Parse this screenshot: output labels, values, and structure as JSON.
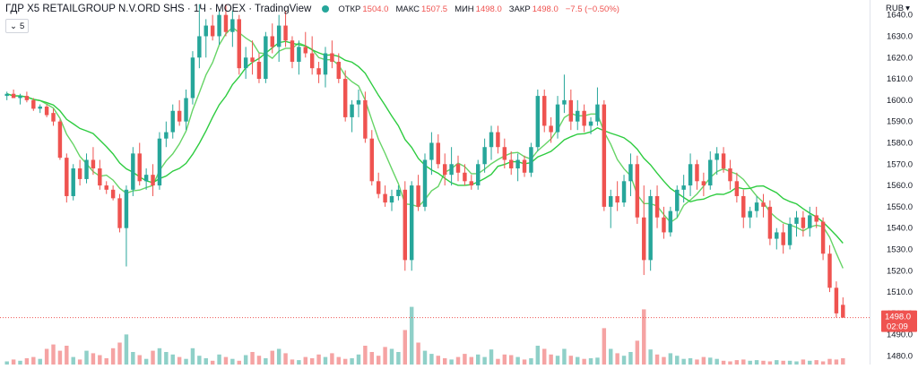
{
  "header": {
    "symbol_title": "ГДР X5 RETAILGROUP N.V.ORD SHS · 1Ч · MOEX · TradingView",
    "ohlc": [
      {
        "label": "ОТКР",
        "value": "1504.0"
      },
      {
        "label": "МАКС",
        "value": "1507.5"
      },
      {
        "label": "МИН",
        "value": "1498.0"
      },
      {
        "label": "ЗАКР",
        "value": "1498.0"
      }
    ],
    "change": "−7.5 (−0.50%)",
    "indicator_count": "5"
  },
  "currency": "RUB",
  "last_price": {
    "price_label": "1498.0",
    "countdown": "02:09"
  },
  "colors": {
    "up": "#26a69a",
    "down": "#ef5350",
    "ma_fast": "#66d466",
    "ma_slow": "#2ecc40",
    "vol_up": "#8fd0c8",
    "vol_down": "#f5a3a3"
  },
  "chart_data": {
    "type": "candlestick",
    "ylim": [
      1476,
      1647
    ],
    "yticks": [
      1480,
      1490,
      1500,
      1510,
      1520,
      1530,
      1540,
      1550,
      1560,
      1570,
      1580,
      1590,
      1600,
      1610,
      1620,
      1630,
      1640
    ],
    "candles": [
      [
        1602,
        1604,
        1600,
        1603
      ],
      [
        1603,
        1605,
        1601,
        1601
      ],
      [
        1601,
        1603,
        1598,
        1602
      ],
      [
        1602,
        1604,
        1599,
        1600
      ],
      [
        1600,
        1601,
        1595,
        1596
      ],
      [
        1596,
        1598,
        1594,
        1597
      ],
      [
        1597,
        1598,
        1592,
        1593
      ],
      [
        1594,
        1596,
        1588,
        1590
      ],
      [
        1590,
        1591,
        1572,
        1573
      ],
      [
        1573,
        1575,
        1552,
        1555
      ],
      [
        1555,
        1570,
        1553,
        1568
      ],
      [
        1568,
        1572,
        1560,
        1563
      ],
      [
        1563,
        1575,
        1561,
        1572
      ],
      [
        1572,
        1578,
        1565,
        1568
      ],
      [
        1568,
        1572,
        1558,
        1560
      ],
      [
        1560,
        1562,
        1556,
        1558
      ],
      [
        1558,
        1560,
        1553,
        1554
      ],
      [
        1554,
        1556,
        1538,
        1540
      ],
      [
        1540,
        1560,
        1522,
        1558
      ],
      [
        1558,
        1578,
        1555,
        1575
      ],
      [
        1575,
        1580,
        1560,
        1562
      ],
      [
        1562,
        1568,
        1558,
        1565
      ],
      [
        1565,
        1570,
        1555,
        1560
      ],
      [
        1560,
        1585,
        1558,
        1582
      ],
      [
        1582,
        1590,
        1578,
        1585
      ],
      [
        1585,
        1598,
        1582,
        1595
      ],
      [
        1595,
        1600,
        1588,
        1590
      ],
      [
        1590,
        1605,
        1586,
        1601
      ],
      [
        1601,
        1623,
        1598,
        1620
      ],
      [
        1620,
        1645,
        1615,
        1630
      ],
      [
        1630,
        1638,
        1620,
        1635
      ],
      [
        1635,
        1640,
        1628,
        1630
      ],
      [
        1630,
        1642,
        1626,
        1640
      ],
      [
        1640,
        1645,
        1630,
        1632
      ],
      [
        1632,
        1642,
        1625,
        1638
      ],
      [
        1638,
        1640,
        1612,
        1615
      ],
      [
        1615,
        1625,
        1610,
        1620
      ],
      [
        1620,
        1628,
        1612,
        1618
      ],
      [
        1618,
        1622,
        1608,
        1610
      ],
      [
        1610,
        1632,
        1608,
        1630
      ],
      [
        1630,
        1636,
        1622,
        1625
      ],
      [
        1625,
        1640,
        1618,
        1635
      ],
      [
        1635,
        1642,
        1625,
        1628
      ],
      [
        1628,
        1630,
        1615,
        1618
      ],
      [
        1618,
        1628,
        1612,
        1625
      ],
      [
        1625,
        1632,
        1620,
        1622
      ],
      [
        1622,
        1630,
        1612,
        1615
      ],
      [
        1615,
        1618,
        1608,
        1612
      ],
      [
        1612,
        1625,
        1606,
        1622
      ],
      [
        1622,
        1628,
        1615,
        1618
      ],
      [
        1618,
        1622,
        1608,
        1610
      ],
      [
        1610,
        1614,
        1590,
        1592
      ],
      [
        1592,
        1600,
        1585,
        1598
      ],
      [
        1598,
        1605,
        1592,
        1600
      ],
      [
        1600,
        1604,
        1580,
        1582
      ],
      [
        1582,
        1586,
        1560,
        1562
      ],
      [
        1562,
        1566,
        1554,
        1556
      ],
      [
        1556,
        1560,
        1550,
        1552
      ],
      [
        1552,
        1558,
        1548,
        1555
      ],
      [
        1555,
        1560,
        1553,
        1558
      ],
      [
        1558,
        1562,
        1520,
        1525
      ],
      [
        1525,
        1562,
        1520,
        1560
      ],
      [
        1560,
        1565,
        1548,
        1550
      ],
      [
        1550,
        1575,
        1548,
        1572
      ],
      [
        1572,
        1585,
        1565,
        1580
      ],
      [
        1580,
        1584,
        1568,
        1570
      ],
      [
        1570,
        1575,
        1560,
        1565
      ],
      [
        1565,
        1578,
        1560,
        1570
      ],
      [
        1570,
        1574,
        1562,
        1566
      ],
      [
        1566,
        1570,
        1560,
        1562
      ],
      [
        1562,
        1565,
        1558,
        1560
      ],
      [
        1560,
        1572,
        1558,
        1570
      ],
      [
        1570,
        1582,
        1566,
        1578
      ],
      [
        1578,
        1588,
        1572,
        1585
      ],
      [
        1585,
        1588,
        1575,
        1578
      ],
      [
        1578,
        1582,
        1568,
        1572
      ],
      [
        1572,
        1576,
        1565,
        1568
      ],
      [
        1568,
        1575,
        1562,
        1572
      ],
      [
        1572,
        1574,
        1564,
        1566
      ],
      [
        1566,
        1580,
        1564,
        1578
      ],
      [
        1578,
        1605,
        1576,
        1602
      ],
      [
        1602,
        1605,
        1585,
        1588
      ],
      [
        1588,
        1592,
        1580,
        1585
      ],
      [
        1585,
        1602,
        1582,
        1598
      ],
      [
        1598,
        1612,
        1594,
        1600
      ],
      [
        1600,
        1605,
        1586,
        1590
      ],
      [
        1590,
        1600,
        1586,
        1595
      ],
      [
        1595,
        1598,
        1585,
        1588
      ],
      [
        1588,
        1592,
        1584,
        1590
      ],
      [
        1590,
        1606,
        1588,
        1598
      ],
      [
        1598,
        1600,
        1548,
        1550
      ],
      [
        1550,
        1558,
        1540,
        1555
      ],
      [
        1555,
        1562,
        1548,
        1552
      ],
      [
        1552,
        1565,
        1550,
        1562
      ],
      [
        1562,
        1575,
        1555,
        1570
      ],
      [
        1570,
        1574,
        1542,
        1545
      ],
      [
        1545,
        1560,
        1518,
        1525
      ],
      [
        1525,
        1558,
        1520,
        1555
      ],
      [
        1555,
        1560,
        1540,
        1545
      ],
      [
        1545,
        1550,
        1535,
        1538
      ],
      [
        1538,
        1550,
        1536,
        1548
      ],
      [
        1548,
        1560,
        1545,
        1558
      ],
      [
        1558,
        1565,
        1552,
        1560
      ],
      [
        1560,
        1575,
        1555,
        1570
      ],
      [
        1570,
        1572,
        1558,
        1562
      ],
      [
        1562,
        1566,
        1555,
        1560
      ],
      [
        1560,
        1576,
        1558,
        1572
      ],
      [
        1572,
        1578,
        1565,
        1575
      ],
      [
        1575,
        1578,
        1566,
        1568
      ],
      [
        1568,
        1572,
        1558,
        1562
      ],
      [
        1562,
        1566,
        1552,
        1555
      ],
      [
        1555,
        1558,
        1540,
        1545
      ],
      [
        1545,
        1550,
        1540,
        1548
      ],
      [
        1548,
        1555,
        1545,
        1552
      ],
      [
        1552,
        1556,
        1545,
        1550
      ],
      [
        1550,
        1553,
        1532,
        1535
      ],
      [
        1535,
        1540,
        1530,
        1538
      ],
      [
        1538,
        1542,
        1528,
        1532
      ],
      [
        1532,
        1545,
        1530,
        1542
      ],
      [
        1542,
        1548,
        1536,
        1545
      ],
      [
        1545,
        1548,
        1536,
        1540
      ],
      [
        1540,
        1550,
        1536,
        1546
      ],
      [
        1546,
        1550,
        1540,
        1543
      ],
      [
        1543,
        1545,
        1525,
        1528
      ],
      [
        1528,
        1532,
        1510,
        1512
      ],
      [
        1512,
        1515,
        1498,
        1500
      ],
      [
        1504,
        1507.5,
        1498,
        1498
      ]
    ],
    "volumes": [
      0.05,
      0.08,
      0.06,
      0.1,
      0.12,
      0.09,
      0.25,
      0.32,
      0.22,
      0.3,
      0.12,
      0.08,
      0.22,
      0.18,
      0.15,
      0.1,
      0.26,
      0.35,
      0.48,
      0.2,
      0.15,
      0.09,
      0.22,
      0.26,
      0.2,
      0.16,
      0.12,
      0.09,
      0.26,
      0.14,
      0.1,
      0.06,
      0.16,
      0.12,
      0.09,
      0.06,
      0.15,
      0.2,
      0.14,
      0.1,
      0.22,
      0.25,
      0.18,
      0.08,
      0.07,
      0.12,
      0.1,
      0.16,
      0.12,
      0.18,
      0.12,
      0.09,
      0.1,
      0.16,
      0.3,
      0.2,
      0.14,
      0.28,
      0.25,
      0.2,
      0.55,
      0.92,
      0.35,
      0.22,
      0.17,
      0.14,
      0.1,
      0.08,
      0.12,
      0.17,
      0.12,
      0.16,
      0.12,
      0.24,
      0.09,
      0.16,
      0.15,
      0.12,
      0.08,
      0.1,
      0.3,
      0.25,
      0.16,
      0.14,
      0.25,
      0.14,
      0.12,
      0.09,
      0.1,
      0.11,
      0.58,
      0.25,
      0.18,
      0.14,
      0.2,
      0.38,
      0.88,
      0.24,
      0.16,
      0.12,
      0.18,
      0.14,
      0.09,
      0.1,
      0.08,
      0.12,
      0.11,
      0.09,
      0.06,
      0.05,
      0.07,
      0.08,
      0.06,
      0.07,
      0.06,
      0.05,
      0.07,
      0.06,
      0.06,
      0.05,
      0.08,
      0.06,
      0.07,
      0.05,
      0.09,
      0.08,
      0.1
    ]
  }
}
